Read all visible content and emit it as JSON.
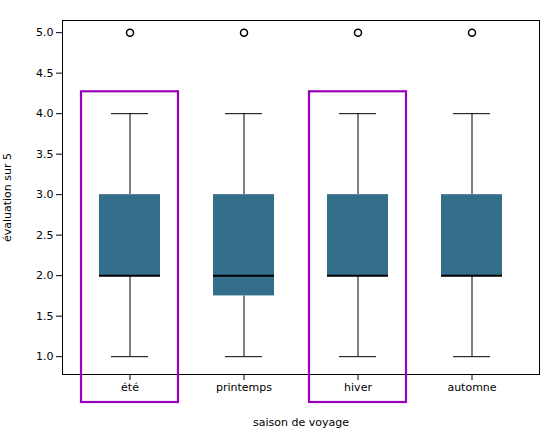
{
  "chart_data": {
    "type": "box",
    "xlabel": "saison de voyage",
    "ylabel": "évaluation sur 5",
    "categories": [
      "été",
      "printemps",
      "hiver",
      "automne"
    ],
    "stats": [
      {
        "med": 2.0,
        "q1": 2.0,
        "q3": 3.0,
        "whislo": 1.0,
        "whishi": 4.0,
        "fliers": [
          5.0
        ]
      },
      {
        "med": 2.0,
        "q1": 1.75,
        "q3": 3.0,
        "whislo": 1.0,
        "whishi": 4.0,
        "fliers": [
          5.0
        ]
      },
      {
        "med": 2.0,
        "q1": 2.0,
        "q3": 3.0,
        "whislo": 1.0,
        "whishi": 4.0,
        "fliers": [
          5.0
        ]
      },
      {
        "med": 2.0,
        "q1": 2.0,
        "q3": 3.0,
        "whislo": 1.0,
        "whishi": 4.0,
        "fliers": [
          5.0
        ]
      }
    ],
    "color": "#336e8a",
    "highlight": {
      "categories": [
        "été",
        "hiver"
      ],
      "color": "#9900bb",
      "top": 4.27
    },
    "ylim": [
      0.78,
      5.15
    ],
    "yticks": [
      {
        "value": 1.0,
        "label": "1.0"
      },
      1.5,
      {
        "value": 2.0,
        "label": "2.0"
      },
      2.5,
      {
        "value": 3.0,
        "label": "3.0"
      },
      3.5,
      {
        "value": 4.0,
        "label": "4.0"
      },
      4.5,
      {
        "value": 5.0,
        "label": "5.0"
      }
    ],
    "grid": false
  }
}
